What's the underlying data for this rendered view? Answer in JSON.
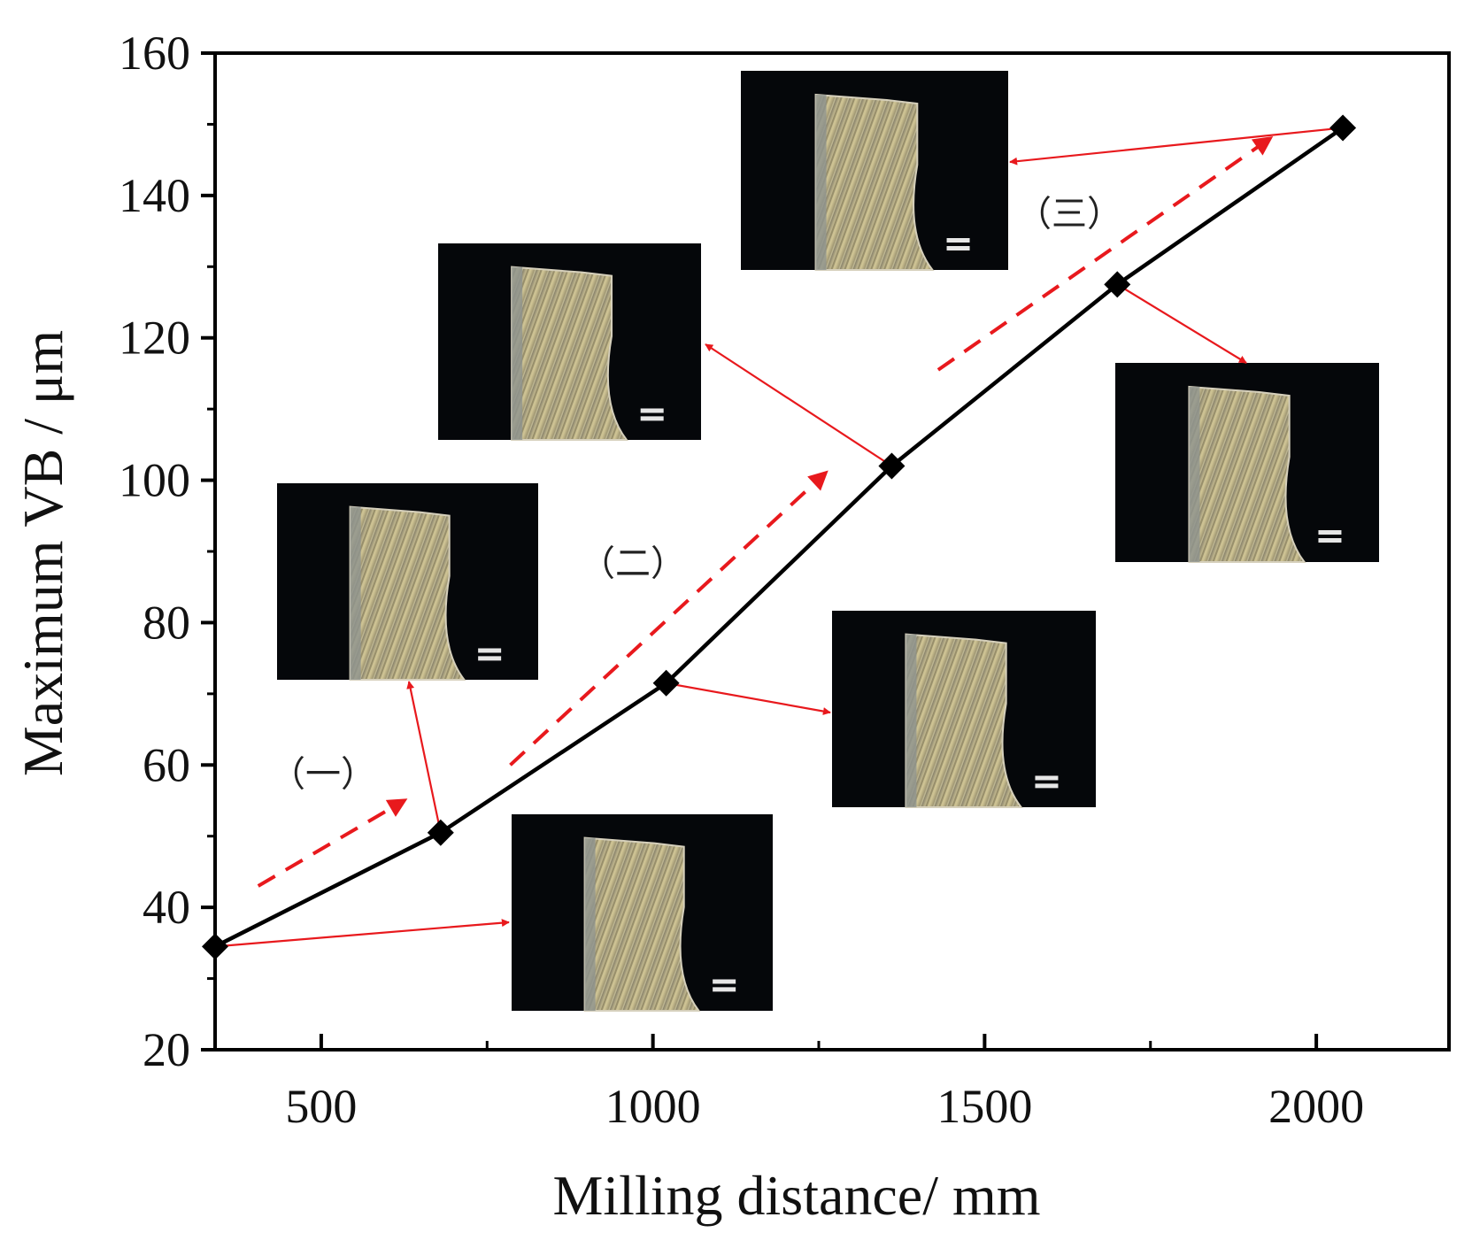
{
  "chart_data": {
    "type": "line",
    "title": "",
    "xlabel": "Milling distance/ mm",
    "ylabel": "Maximum VB / μm",
    "xlim": [
      340,
      2200
    ],
    "ylim": [
      20,
      160
    ],
    "xticks": [
      500,
      1000,
      1500,
      2000
    ],
    "xminor": [
      750,
      1250,
      1750
    ],
    "yticks": [
      20,
      40,
      60,
      80,
      100,
      120,
      140,
      160
    ],
    "yminor": [
      30,
      50,
      70,
      90,
      110,
      130,
      150
    ],
    "series": [
      {
        "name": "Maximum VB",
        "x": [
          340,
          680,
          1020,
          1360,
          1700,
          2040
        ],
        "y": [
          34.5,
          50.5,
          71.5,
          102,
          127.5,
          149.5
        ],
        "color": "#000000",
        "marker": "diamond"
      }
    ],
    "stages": [
      {
        "label": "（一）",
        "trend_from": [
          405,
          43
        ],
        "trend_to": [
          625,
          55
        ]
      },
      {
        "label": "（二）",
        "trend_from": [
          785,
          60
        ],
        "trend_to": [
          1260,
          101
        ]
      },
      {
        "label": "（三）",
        "trend_from": [
          1430,
          115.5
        ],
        "trend_to": [
          1930,
          148
        ]
      }
    ],
    "annotation_color": "#e8191d",
    "inset_images": [
      {
        "name": "tool-wear-image-340",
        "point": 0
      },
      {
        "name": "tool-wear-image-680",
        "point": 1
      },
      {
        "name": "tool-wear-image-1020",
        "point": 2
      },
      {
        "name": "tool-wear-image-1360",
        "point": 3
      },
      {
        "name": "tool-wear-image-1700",
        "point": 4
      },
      {
        "name": "tool-wear-image-2040",
        "point": 5
      }
    ]
  }
}
